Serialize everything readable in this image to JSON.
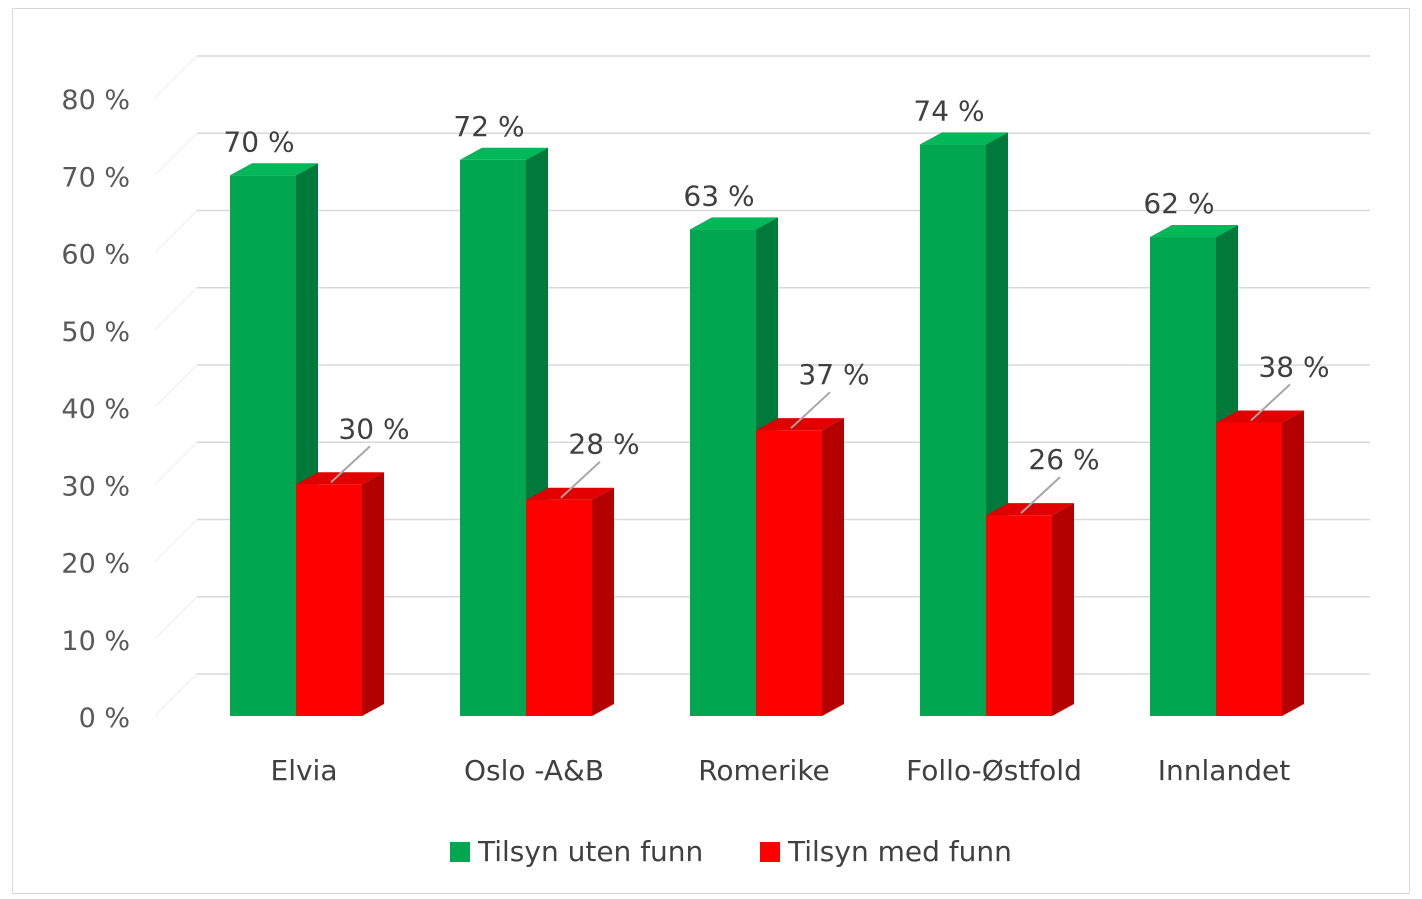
{
  "chart_data": {
    "type": "bar",
    "categories": [
      "Elvia",
      "Oslo -A&B",
      "Romerike",
      "Follo-Østfold",
      "Innlandet"
    ],
    "series": [
      {
        "name": "Tilsyn uten funn",
        "values": [
          70,
          72,
          63,
          74,
          62
        ],
        "color": "#00a650",
        "side_color": "#00793a",
        "top_color": "#00b85a"
      },
      {
        "name": "Tilsyn med funn",
        "values": [
          30,
          28,
          37,
          26,
          38
        ],
        "color": "#ff0000",
        "side_color": "#b30000",
        "top_color": "#e00000"
      }
    ],
    "data_labels": [
      [
        "70 %",
        "72 %",
        "63 %",
        "74 %",
        "62 %"
      ],
      [
        "30 %",
        "28 %",
        "37 %",
        "26 %",
        "38 %"
      ]
    ],
    "y_ticks": [
      "0 %",
      "10 %",
      "20 %",
      "30 %",
      "40 %",
      "50 %",
      "60 %",
      "70 %",
      "80 %"
    ],
    "ylim": [
      0,
      80
    ],
    "grid": true,
    "legend_position": "bottom",
    "style": "3d-clustered-column",
    "title": "",
    "xlabel": "",
    "ylabel": ""
  }
}
